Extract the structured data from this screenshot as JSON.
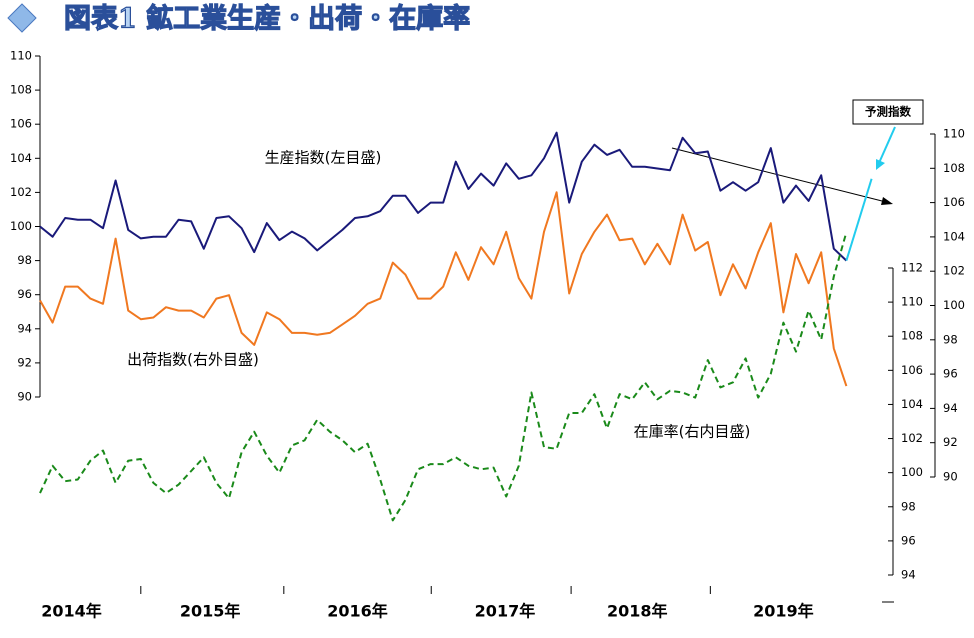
{
  "chart_data": {
    "type": "line",
    "title": "図表1 鉱工業生産・出荷・在庫率",
    "annotations": [
      "生産指数(左目盛)",
      "出荷指数(右外目盛)",
      "在庫率(右内目盛)",
      "予測指数"
    ],
    "x": [
      0,
      1,
      2,
      3,
      4,
      5,
      6,
      7,
      8,
      9,
      10,
      11,
      12,
      13,
      14,
      15,
      16,
      17,
      18,
      19,
      20,
      21,
      22,
      23,
      24,
      25,
      26,
      27,
      28,
      29,
      30,
      31,
      32,
      33,
      34,
      35,
      36,
      37,
      38,
      39,
      40,
      41,
      42,
      43,
      44,
      45,
      46,
      47,
      48,
      49,
      50,
      51,
      52,
      53,
      54,
      55,
      56,
      57,
      58,
      59,
      60,
      61,
      62,
      63,
      64,
      65,
      66
    ],
    "xlim": [
      0,
      67.3
    ],
    "xticks": [
      {
        "value": 2.5,
        "label": "2014年"
      },
      {
        "value": 13.5,
        "label": "2015年"
      },
      {
        "value": 25.2,
        "label": "2016年"
      },
      {
        "value": 36.9,
        "label": "2017年"
      },
      {
        "value": 47.4,
        "label": "2018年"
      },
      {
        "value": 59,
        "label": "2019年"
      }
    ],
    "ylim": [
      90,
      110
    ],
    "yticks": [
      90,
      92,
      94,
      96,
      98,
      100,
      102,
      104,
      106,
      108,
      110
    ],
    "y2lim": [
      90,
      110
    ],
    "y2ticks": [
      90,
      92,
      94,
      96,
      98,
      100,
      102,
      104,
      106,
      108,
      110
    ],
    "y3lim": [
      94,
      112
    ],
    "y3ticks": [
      94,
      96,
      98,
      100,
      102,
      104,
      106,
      108,
      110,
      112
    ],
    "series": [
      {
        "name": "生産指数",
        "color": "#1a1a7a",
        "dash": false,
        "axis": "y",
        "values": [
          100.0,
          99.4,
          100.5,
          100.4,
          100.4,
          99.9,
          102.7,
          99.8,
          99.3,
          99.4,
          99.4,
          100.4,
          100.3,
          98.7,
          100.5,
          100.6,
          99.9,
          98.5,
          100.2,
          99.2,
          99.7,
          99.3,
          98.6,
          99.2,
          99.8,
          100.5,
          100.6,
          100.9,
          101.8,
          101.8,
          100.8,
          101.4,
          101.4,
          103.8,
          102.2,
          103.1,
          102.4,
          103.7,
          102.8,
          103.0,
          104.0,
          105.5,
          101.4,
          103.8,
          104.8,
          104.2,
          104.5,
          103.5,
          103.5,
          103.4,
          103.3,
          105.2,
          104.3,
          104.4,
          102.1,
          102.6,
          102.1,
          102.6,
          104.6,
          101.4,
          102.4,
          101.5,
          103.0,
          98.7,
          98.0,
          null,
          null
        ]
      },
      {
        "name": "出荷指数",
        "color": "#f07820",
        "dash": false,
        "axis": "y2",
        "values": [
          100.3,
          99.0,
          101.1,
          101.1,
          100.4,
          100.1,
          103.9,
          99.7,
          99.2,
          99.3,
          99.9,
          99.7,
          99.7,
          99.3,
          100.4,
          100.6,
          98.4,
          97.7,
          99.6,
          99.2,
          98.4,
          98.4,
          98.3,
          98.4,
          98.9,
          99.4,
          100.1,
          100.4,
          102.5,
          101.8,
          100.4,
          100.4,
          101.1,
          103.1,
          101.5,
          103.4,
          102.4,
          104.3,
          101.6,
          100.4,
          104.3,
          106.6,
          100.7,
          103.0,
          104.3,
          105.3,
          103.8,
          103.9,
          102.4,
          103.6,
          102.4,
          105.3,
          103.2,
          103.7,
          100.6,
          102.4,
          101.0,
          103.1,
          104.8,
          99.6,
          103.0,
          101.3,
          103.1,
          97.5,
          95.3,
          null,
          null
        ]
      },
      {
        "name": "在庫率",
        "color": "#1a8a1a",
        "dash": true,
        "axis": "y3",
        "values": [
          98.8,
          100.4,
          99.5,
          99.6,
          100.7,
          101.3,
          99.4,
          100.7,
          100.8,
          99.4,
          98.8,
          99.3,
          100.1,
          100.9,
          99.4,
          98.5,
          101.2,
          102.4,
          101.0,
          100.0,
          101.6,
          101.9,
          103.1,
          102.4,
          101.9,
          101.2,
          101.7,
          99.6,
          97.2,
          98.4,
          100.2,
          100.5,
          100.5,
          100.9,
          100.4,
          100.2,
          100.3,
          98.6,
          100.4,
          104.7,
          101.5,
          101.4,
          103.5,
          103.5,
          104.6,
          102.6,
          104.6,
          104.3,
          105.3,
          104.3,
          104.8,
          104.7,
          104.4,
          106.6,
          105.0,
          105.3,
          106.7,
          104.4,
          105.8,
          108.8,
          107.1,
          109.5,
          107.8,
          111.5,
          114.1,
          null,
          null
        ]
      },
      {
        "name": "予測指数",
        "color": "#22ccee",
        "dash": false,
        "axis": "y",
        "values": [
          null,
          null,
          null,
          null,
          null,
          null,
          null,
          null,
          null,
          null,
          null,
          null,
          null,
          null,
          null,
          null,
          null,
          null,
          null,
          null,
          null,
          null,
          null,
          null,
          null,
          null,
          null,
          null,
          null,
          null,
          null,
          null,
          null,
          null,
          null,
          null,
          null,
          null,
          null,
          null,
          null,
          null,
          null,
          null,
          null,
          null,
          null,
          null,
          null,
          null,
          null,
          null,
          null,
          null,
          null,
          null,
          null,
          null,
          null,
          null,
          null,
          null,
          null,
          null,
          98.0,
          100.4,
          102.8
        ]
      }
    ]
  }
}
